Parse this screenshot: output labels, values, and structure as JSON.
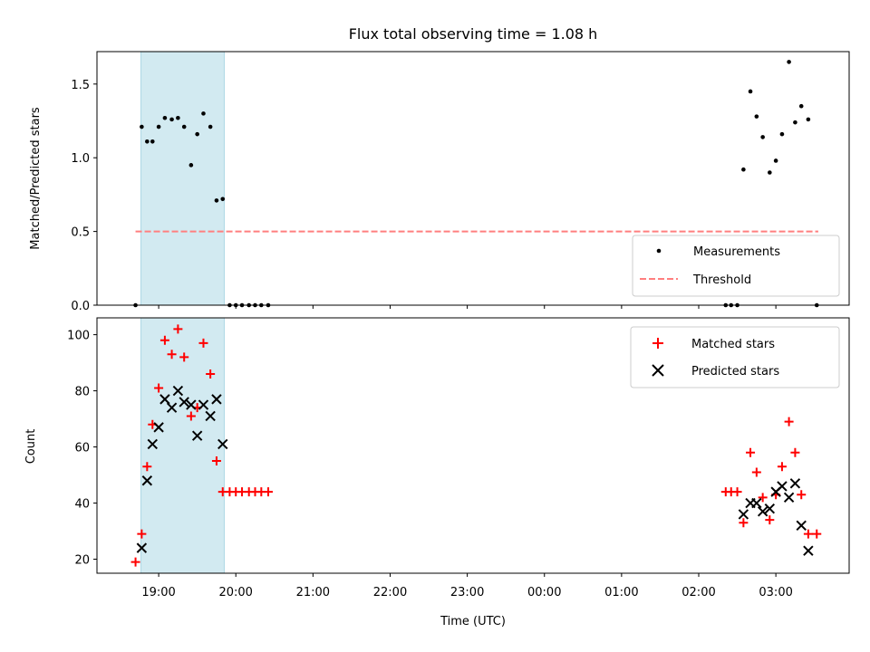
{
  "chart_data": [
    {
      "type": "scatter",
      "title": "Flux total observing time = 1.08 h",
      "xlabel": "",
      "ylabel": "Matched/Predicted stars",
      "x_ticks": [
        "19:00",
        "20:00",
        "21:00",
        "22:00",
        "23:00",
        "00:00",
        "01:00",
        "02:00",
        "03:00"
      ],
      "xlim_hours": [
        18.2,
        27.95
      ],
      "ylim": [
        0,
        1.72
      ],
      "y_ticks": [
        0.0,
        0.5,
        1.0,
        1.5
      ],
      "y_tick_labels": [
        "0.0",
        "0.5",
        "1.0",
        "1.5"
      ],
      "shaded_interval_hours": [
        18.77,
        19.85
      ],
      "shade_color": "#add8e6",
      "threshold": {
        "value": 0.5,
        "from_hours": 18.7,
        "to_hours": 27.55,
        "color": "#ff7f7f"
      },
      "legend": {
        "position": "lower-right",
        "entries": [
          "Measurements",
          "Threshold"
        ]
      },
      "series": [
        {
          "name": "Measurements",
          "color": "#000000",
          "marker": "dot",
          "points": [
            [
              18.7,
              0.0
            ],
            [
              18.78,
              1.21
            ],
            [
              18.85,
              1.11
            ],
            [
              18.92,
              1.11
            ],
            [
              19.0,
              1.21
            ],
            [
              19.08,
              1.27
            ],
            [
              19.17,
              1.26
            ],
            [
              19.25,
              1.27
            ],
            [
              19.33,
              1.21
            ],
            [
              19.42,
              0.95
            ],
            [
              19.5,
              1.16
            ],
            [
              19.58,
              1.3
            ],
            [
              19.67,
              1.21
            ],
            [
              19.75,
              0.71
            ],
            [
              19.83,
              0.72
            ],
            [
              19.92,
              0.0
            ],
            [
              20.0,
              0.0
            ],
            [
              20.08,
              0.0
            ],
            [
              20.17,
              0.0
            ],
            [
              20.25,
              0.0
            ],
            [
              20.33,
              0.0
            ],
            [
              20.42,
              0.0
            ],
            [
              26.35,
              0.0
            ],
            [
              26.42,
              0.0
            ],
            [
              26.5,
              0.0
            ],
            [
              26.58,
              0.92
            ],
            [
              26.67,
              1.45
            ],
            [
              26.75,
              1.28
            ],
            [
              26.83,
              1.14
            ],
            [
              26.92,
              0.9
            ],
            [
              27.0,
              0.98
            ],
            [
              27.08,
              1.16
            ],
            [
              27.17,
              1.65
            ],
            [
              27.25,
              1.24
            ],
            [
              27.33,
              1.35
            ],
            [
              27.42,
              1.26
            ],
            [
              27.53,
              0.0
            ]
          ]
        }
      ]
    },
    {
      "type": "scatter",
      "title": "",
      "xlabel": "Time (UTC)",
      "ylabel": "Count",
      "x_ticks": [
        "19:00",
        "20:00",
        "21:00",
        "22:00",
        "23:00",
        "00:00",
        "01:00",
        "02:00",
        "03:00"
      ],
      "xlim_hours": [
        18.2,
        27.95
      ],
      "ylim": [
        15,
        106
      ],
      "y_ticks": [
        20,
        40,
        60,
        80,
        100
      ],
      "y_tick_labels": [
        "20",
        "40",
        "60",
        "80",
        "100"
      ],
      "shaded_interval_hours": [
        18.77,
        19.85
      ],
      "shade_color": "#add8e6",
      "legend": {
        "position": "top-right",
        "entries": [
          "Matched stars",
          "Predicted stars"
        ]
      },
      "series": [
        {
          "name": "Matched stars",
          "color": "#ff0000",
          "marker": "plus",
          "points": [
            [
              18.7,
              19
            ],
            [
              18.78,
              29
            ],
            [
              18.85,
              53
            ],
            [
              18.92,
              68
            ],
            [
              19.0,
              81
            ],
            [
              19.08,
              98
            ],
            [
              19.17,
              93
            ],
            [
              19.25,
              102
            ],
            [
              19.33,
              92
            ],
            [
              19.42,
              71
            ],
            [
              19.5,
              74
            ],
            [
              19.58,
              97
            ],
            [
              19.67,
              86
            ],
            [
              19.75,
              55
            ],
            [
              19.83,
              44
            ],
            [
              19.92,
              44
            ],
            [
              20.0,
              44
            ],
            [
              20.08,
              44
            ],
            [
              20.17,
              44
            ],
            [
              20.25,
              44
            ],
            [
              20.33,
              44
            ],
            [
              20.42,
              44
            ],
            [
              26.35,
              44
            ],
            [
              26.42,
              44
            ],
            [
              26.5,
              44
            ],
            [
              26.58,
              33
            ],
            [
              26.67,
              58
            ],
            [
              26.75,
              51
            ],
            [
              26.83,
              42
            ],
            [
              26.92,
              34
            ],
            [
              27.0,
              43
            ],
            [
              27.08,
              53
            ],
            [
              27.17,
              69
            ],
            [
              27.25,
              58
            ],
            [
              27.33,
              43
            ],
            [
              27.42,
              29
            ],
            [
              27.53,
              29
            ]
          ]
        },
        {
          "name": "Predicted stars",
          "color": "#000000",
          "marker": "x",
          "points": [
            [
              18.78,
              24
            ],
            [
              18.85,
              48
            ],
            [
              18.92,
              61
            ],
            [
              19.0,
              67
            ],
            [
              19.08,
              77
            ],
            [
              19.17,
              74
            ],
            [
              19.25,
              80
            ],
            [
              19.33,
              76
            ],
            [
              19.42,
              75
            ],
            [
              19.5,
              64
            ],
            [
              19.58,
              75
            ],
            [
              19.67,
              71
            ],
            [
              19.75,
              77
            ],
            [
              19.83,
              61
            ],
            [
              26.58,
              36
            ],
            [
              26.67,
              40
            ],
            [
              26.75,
              40
            ],
            [
              26.83,
              37
            ],
            [
              26.92,
              38
            ],
            [
              27.0,
              44
            ],
            [
              27.08,
              46
            ],
            [
              27.17,
              42
            ],
            [
              27.25,
              47
            ],
            [
              27.33,
              32
            ],
            [
              27.42,
              23
            ]
          ]
        }
      ]
    }
  ]
}
